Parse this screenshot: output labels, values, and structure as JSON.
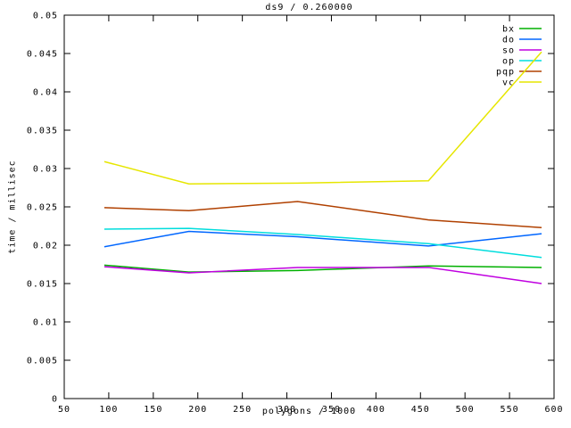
{
  "window": {
    "background": "#ffffff",
    "foreground": "#000000"
  },
  "chart_data": {
    "type": "line",
    "title": "ds9 / 0.260000",
    "xlabel": "polygons / 1000",
    "ylabel": "time / millisec",
    "xlim": [
      50,
      600
    ],
    "ylim": [
      0,
      0.05
    ],
    "xticks": [
      50,
      100,
      150,
      200,
      250,
      300,
      350,
      400,
      450,
      500,
      550,
      600
    ],
    "yticks": [
      0,
      0.005,
      0.01,
      0.015,
      0.02,
      0.025,
      0.03,
      0.035,
      0.04,
      0.045,
      0.05
    ],
    "grid": false,
    "legend_position": "top-right",
    "x": [
      95,
      190,
      312,
      459,
      586
    ],
    "series": [
      {
        "name": "bx",
        "color": "#00b000",
        "values": [
          0.0174,
          0.0165,
          0.0167,
          0.0173,
          0.0171
        ]
      },
      {
        "name": "do",
        "color": "#0066ff",
        "values": [
          0.0198,
          0.0218,
          0.0211,
          0.0199,
          0.0215
        ]
      },
      {
        "name": "so",
        "color": "#c000e0",
        "values": [
          0.0172,
          0.0164,
          0.0171,
          0.0171,
          0.015
        ]
      },
      {
        "name": "op",
        "color": "#00dddd",
        "values": [
          0.0221,
          0.0222,
          0.0214,
          0.0202,
          0.0184
        ]
      },
      {
        "name": "pqp",
        "color": "#b04000",
        "values": [
          0.0249,
          0.0245,
          0.0257,
          0.0233,
          0.0223
        ]
      },
      {
        "name": "vc",
        "color": "#e6e600",
        "values": [
          0.0309,
          0.028,
          0.0281,
          0.0284,
          0.0452
        ]
      }
    ]
  }
}
